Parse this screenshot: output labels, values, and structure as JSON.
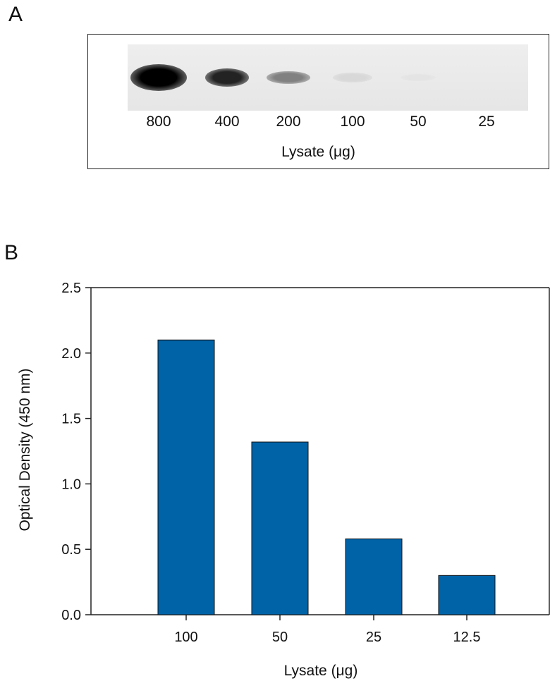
{
  "panels": {
    "a_label": "A",
    "b_label": "B"
  },
  "blot": {
    "lanes": [
      "800",
      "400",
      "200",
      "100",
      "50",
      "25"
    ],
    "band_intensity": [
      1.0,
      0.85,
      0.45,
      0.08,
      0.03,
      0.0
    ],
    "xlabel": "Lysate (μg)"
  },
  "chart_data": {
    "type": "bar",
    "categories": [
      "100",
      "50",
      "25",
      "12.5"
    ],
    "values": [
      2.1,
      1.32,
      0.58,
      0.3
    ],
    "xlabel": "Lysate (μg)",
    "ylabel": "Optical Density (450 nm)",
    "ylim": [
      0,
      2.5
    ],
    "yticks": [
      "0.0",
      "0.5",
      "1.0",
      "1.5",
      "2.0",
      "2.5"
    ],
    "bar_color": "#0063a8",
    "grid": false
  }
}
